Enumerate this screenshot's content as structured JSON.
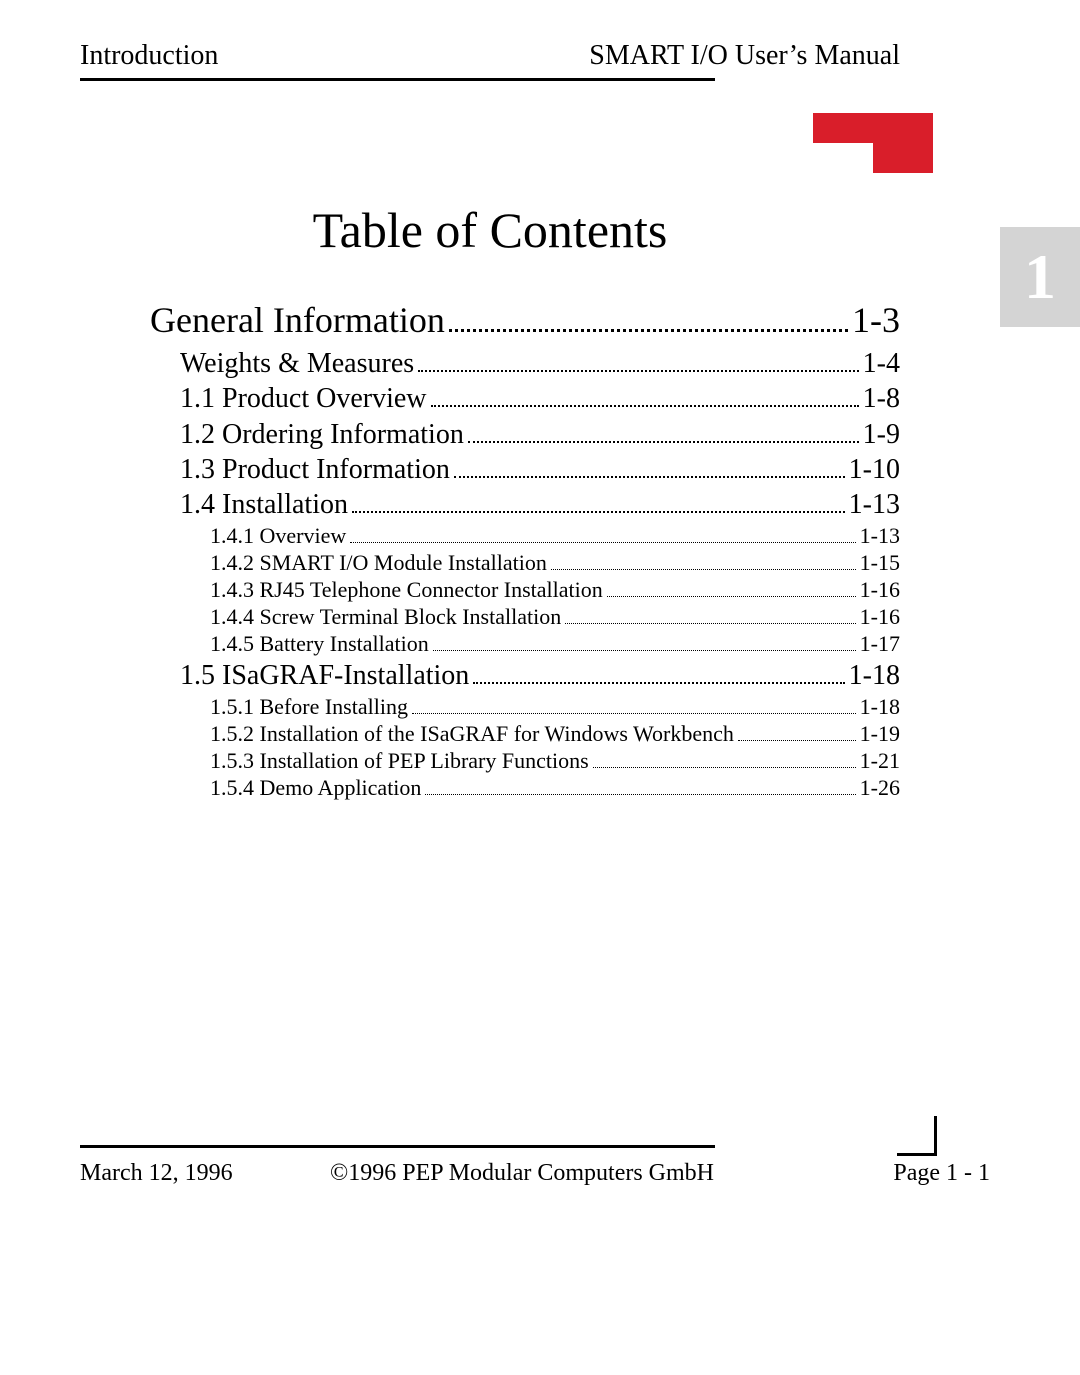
{
  "header": {
    "left": "Introduction",
    "right": "SMART I/O User’s Manual"
  },
  "title": "Table of Contents",
  "side_tab": "1",
  "colors": {
    "accent_red": "#d91e2a",
    "tab_bg": "#d4d4d4",
    "tab_fg": "#ffffff",
    "text": "#000000",
    "background": "#ffffff"
  },
  "toc": [
    {
      "level": 1,
      "label": "General Information",
      "page": "1-3"
    },
    {
      "level": 2,
      "label": "Weights & Measures",
      "page": "1-4"
    },
    {
      "level": 2,
      "label": "1.1 Product Overview",
      "page": "1-8"
    },
    {
      "level": 2,
      "label": "1.2 Ordering Information",
      "page": "1-9"
    },
    {
      "level": 2,
      "label": "1.3 Product Information",
      "page": "1-10"
    },
    {
      "level": 2,
      "label": "1.4 Installation",
      "page": "1-13"
    },
    {
      "level": 3,
      "label": "1.4.1 Overview",
      "page": "1-13"
    },
    {
      "level": 3,
      "label": "1.4.2 SMART I/O Module Installation",
      "page": "1-15"
    },
    {
      "level": 3,
      "label": "1.4.3 RJ45 Telephone Connector Installation",
      "page": "1-16"
    },
    {
      "level": 3,
      "label": "1.4.4 Screw Terminal Block Installation",
      "page": "1-16"
    },
    {
      "level": 3,
      "label": "1.4.5 Battery Installation",
      "page": "1-17"
    },
    {
      "level": 2,
      "label": "1.5 ISaGRAF-Installation",
      "page": "1-18"
    },
    {
      "level": 3,
      "label": "1.5.1 Before Installing",
      "page": "1-18"
    },
    {
      "level": 3,
      "label": "1.5.2 Installation of the ISaGRAF for Windows Workbench",
      "page": "1-19"
    },
    {
      "level": 3,
      "label": "1.5.3 Installation of PEP Library Functions",
      "page": "1-21"
    },
    {
      "level": 3,
      "label": "1.5.4 Demo Application",
      "page": "1-26"
    }
  ],
  "footer": {
    "date": "March 12, 1996",
    "copyright": "©1996 PEP Modular Computers GmbH",
    "page": "Page 1 - 1"
  }
}
